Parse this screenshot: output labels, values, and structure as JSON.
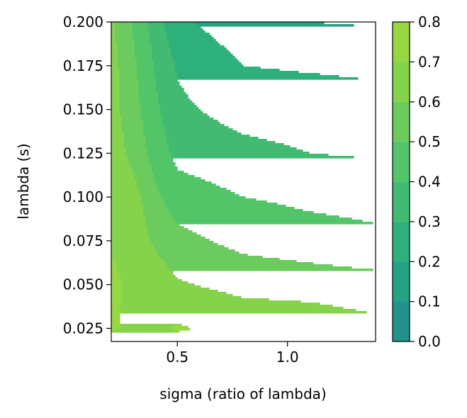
{
  "chart_data": {
    "type": "contour",
    "xlabel": "sigma (ratio of lambda)",
    "ylabel": "lambda (s)",
    "xlim": [
      0.2,
      1.4
    ],
    "ylim": [
      0.0175,
      0.2
    ],
    "x_ticks": [
      {
        "value": 0.5,
        "label": "0.5"
      },
      {
        "value": 1.0,
        "label": "1.0"
      }
    ],
    "y_ticks": [
      {
        "value": 0.025,
        "label": "0.025"
      },
      {
        "value": 0.05,
        "label": "0.050"
      },
      {
        "value": 0.075,
        "label": "0.075"
      },
      {
        "value": 0.1,
        "label": "0.100"
      },
      {
        "value": 0.125,
        "label": "0.125"
      },
      {
        "value": 0.15,
        "label": "0.150"
      },
      {
        "value": 0.175,
        "label": "0.175"
      },
      {
        "value": 0.2,
        "label": "0.200"
      }
    ],
    "x": [
      0.2,
      0.3,
      0.4,
      0.5,
      0.8,
      1.1,
      1.4
    ],
    "y": [
      0.0175,
      0.025,
      0.05,
      0.075,
      0.1,
      0.125,
      0.15,
      0.175,
      0.2
    ],
    "z": [
      [
        0.68,
        0.67,
        0.67,
        0.67,
        0.66,
        0.65,
        0.64
      ],
      [
        0.71,
        0.68,
        0.68,
        0.71,
        0.67,
        0.66,
        0.63
      ],
      [
        0.72,
        0.68,
        0.67,
        0.61,
        0.57,
        0.56,
        0.54
      ],
      [
        0.69,
        0.67,
        0.58,
        0.53,
        0.47,
        0.44,
        0.42
      ],
      [
        0.68,
        0.64,
        0.52,
        0.45,
        0.4,
        0.38,
        0.37
      ],
      [
        0.66,
        0.57,
        0.46,
        0.37,
        0.33,
        0.3,
        0.29
      ],
      [
        0.64,
        0.54,
        0.42,
        0.32,
        0.26,
        0.25,
        0.24
      ],
      [
        0.64,
        0.52,
        0.39,
        0.29,
        0.2,
        0.19,
        0.18
      ],
      [
        0.62,
        0.49,
        0.35,
        0.22,
        0.14,
        0.1,
        0.09
      ]
    ],
    "levels": [
      0.0,
      0.1,
      0.2,
      0.3,
      0.4,
      0.5,
      0.6,
      0.7,
      0.8
    ],
    "colors": [
      "#1f928b",
      "#23a284",
      "#2db07b",
      "#43ba71",
      "#52c568",
      "#6bcb5e",
      "#84d34a",
      "#95d840",
      "#b5de2b"
    ],
    "colorbar": {
      "ticks": [
        {
          "value": 0.0,
          "label": "0.0"
        },
        {
          "value": 0.1,
          "label": "0.1"
        },
        {
          "value": 0.2,
          "label": "0.2"
        },
        {
          "value": 0.3,
          "label": "0.3"
        },
        {
          "value": 0.4,
          "label": "0.4"
        },
        {
          "value": 0.5,
          "label": "0.5"
        },
        {
          "value": 0.6,
          "label": "0.6"
        },
        {
          "value": 0.7,
          "label": "0.7"
        },
        {
          "value": 0.8,
          "label": "0.8"
        }
      ]
    },
    "grid": false,
    "legend": "colorbar-right"
  }
}
